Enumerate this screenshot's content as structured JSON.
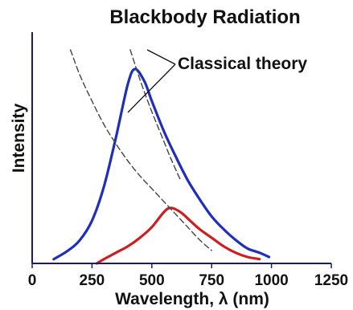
{
  "chart_data": {
    "type": "line",
    "title": "Blackbody Radiation",
    "xlabel": "Wavelength, λ (nm)",
    "ylabel": "Intensity",
    "xlim": [
      0,
      1250
    ],
    "ylim": [
      0,
      1
    ],
    "x_ticks": [
      "0",
      "250",
      "500",
      "750",
      "1000",
      "1250"
    ],
    "y_ticks": [],
    "grid": false,
    "legend": "none",
    "annotations": [
      {
        "text": "Classical theory",
        "points_to": "dashed curves"
      }
    ],
    "series": [
      {
        "color": "#1f2fb8",
        "style": "solid",
        "x": [
          90,
          150,
          200,
          250,
          300,
          350,
          400,
          430,
          470,
          500,
          550,
          600,
          650,
          700,
          750,
          800,
          850,
          900,
          950,
          990
        ],
        "y": [
          0.02,
          0.06,
          0.11,
          0.2,
          0.36,
          0.59,
          0.84,
          0.91,
          0.85,
          0.76,
          0.62,
          0.5,
          0.39,
          0.3,
          0.22,
          0.16,
          0.11,
          0.07,
          0.05,
          0.03
        ]
      },
      {
        "color": "#cc1f1f",
        "style": "solid",
        "x": [
          270,
          300,
          350,
          400,
          450,
          500,
          550,
          580,
          620,
          660,
          700,
          750,
          800,
          850,
          900,
          950
        ],
        "y": [
          0.0,
          0.02,
          0.05,
          0.08,
          0.12,
          0.17,
          0.24,
          0.26,
          0.24,
          0.2,
          0.16,
          0.12,
          0.08,
          0.05,
          0.03,
          0.02
        ]
      },
      {
        "color": "#444444",
        "style": "dashed",
        "x": [
          160,
          200,
          250,
          300,
          350,
          400,
          450,
          500,
          550,
          600,
          650,
          700,
          750
        ],
        "y": [
          1.0,
          0.88,
          0.76,
          0.65,
          0.56,
          0.48,
          0.41,
          0.35,
          0.29,
          0.23,
          0.17,
          0.11,
          0.06
        ]
      },
      {
        "color": "#444444",
        "style": "dashed",
        "x": [
          410,
          430,
          460,
          500,
          540,
          580,
          620
        ],
        "y": [
          1.0,
          0.93,
          0.83,
          0.71,
          0.6,
          0.49,
          0.39
        ]
      }
    ]
  }
}
